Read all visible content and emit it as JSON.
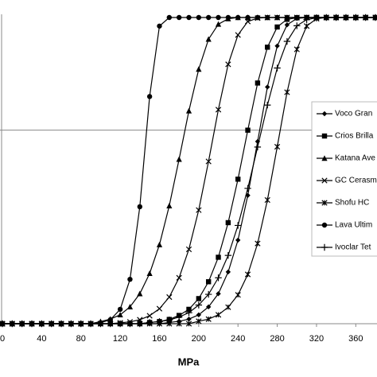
{
  "chart_data": {
    "type": "line",
    "x_label": "MPa",
    "x": [
      0,
      10,
      20,
      30,
      40,
      50,
      60,
      70,
      80,
      90,
      100,
      110,
      120,
      130,
      140,
      150,
      160,
      170,
      180,
      190,
      200,
      210,
      220,
      230,
      240,
      250,
      260,
      270,
      280,
      290,
      300,
      310,
      320,
      330,
      340,
      350,
      360,
      370,
      380
    ],
    "xlim": [
      0,
      380
    ],
    "xticks": [
      0,
      40,
      80,
      120,
      160,
      200,
      240,
      280,
      320,
      360
    ],
    "ylim": [
      0,
      1
    ],
    "reference_line": 0.632,
    "series": [
      {
        "name": "Voco Gran",
        "color": "#000000",
        "marker": "diamond",
        "values": [
          0,
          0,
          0,
          0,
          0,
          0,
          0,
          0,
          0,
          0,
          0,
          0,
          0,
          0,
          0,
          0,
          0,
          0.004,
          0.008,
          0.015,
          0.029,
          0.055,
          0.098,
          0.169,
          0.273,
          0.419,
          0.595,
          0.773,
          0.907,
          0.976,
          0.997,
          1,
          1,
          1,
          1,
          1,
          1,
          1,
          1
        ]
      },
      {
        "name": "Crios Brilla",
        "color": "#000000",
        "marker": "square",
        "values": [
          0,
          0,
          0,
          0,
          0,
          0,
          0,
          0,
          0,
          0,
          0,
          0,
          0,
          0,
          0,
          0.004,
          0.007,
          0.014,
          0.027,
          0.047,
          0.082,
          0.137,
          0.217,
          0.33,
          0.472,
          0.632,
          0.786,
          0.903,
          0.969,
          0.994,
          0.999,
          1,
          1,
          1,
          1,
          1,
          1,
          1,
          1
        ]
      },
      {
        "name": "Katana Ave",
        "color": "#000000",
        "marker": "triangle",
        "values": [
          0,
          0,
          0,
          0,
          0,
          0,
          0,
          0,
          0,
          0,
          0.007,
          0.015,
          0.029,
          0.055,
          0.098,
          0.164,
          0.258,
          0.385,
          0.537,
          0.695,
          0.831,
          0.929,
          0.978,
          0.996,
          1,
          1,
          1,
          1,
          1,
          1,
          1,
          1,
          1,
          1,
          1,
          1,
          1,
          1,
          1
        ]
      },
      {
        "name": "GC Cerasm",
        "color": "#000000",
        "marker": "x",
        "values": [
          0,
          0,
          0,
          0,
          0,
          0,
          0,
          0,
          0,
          0,
          0,
          0,
          0.003,
          0.006,
          0.013,
          0.026,
          0.049,
          0.087,
          0.15,
          0.243,
          0.371,
          0.53,
          0.699,
          0.847,
          0.943,
          0.987,
          0.998,
          1,
          1,
          1,
          1,
          1,
          1,
          1,
          1,
          1,
          1,
          1,
          1
        ]
      },
      {
        "name": "Shofu HC",
        "color": "#000000",
        "marker": "asterisk",
        "values": [
          0,
          0,
          0,
          0,
          0,
          0,
          0,
          0,
          0,
          0,
          0,
          0,
          0,
          0,
          0,
          0,
          0,
          0,
          0,
          0,
          0.008,
          0.015,
          0.029,
          0.054,
          0.094,
          0.161,
          0.262,
          0.404,
          0.578,
          0.756,
          0.896,
          0.972,
          0.996,
          1,
          1,
          1,
          1,
          1,
          1
        ]
      },
      {
        "name": "Lava Ultim",
        "color": "#000000",
        "marker": "circle",
        "values": [
          0,
          0,
          0,
          0,
          0,
          0,
          0,
          0,
          0,
          0,
          0.003,
          0.013,
          0.047,
          0.145,
          0.382,
          0.742,
          0.972,
          1,
          1,
          1,
          1,
          1,
          1,
          1,
          1,
          1,
          1,
          1,
          1,
          1,
          1,
          1,
          1,
          1,
          1,
          1,
          1,
          1,
          1
        ]
      },
      {
        "name": "Ivoclar Tet",
        "color": "#000000",
        "marker": "plus",
        "values": [
          0,
          0,
          0,
          0,
          0,
          0,
          0,
          0,
          0,
          0,
          0,
          0,
          0,
          0,
          0,
          0.004,
          0.007,
          0.012,
          0.022,
          0.036,
          0.061,
          0.096,
          0.15,
          0.223,
          0.321,
          0.442,
          0.577,
          0.714,
          0.835,
          0.922,
          0.973,
          0.993,
          0.999,
          1,
          1,
          1,
          1,
          1,
          1
        ]
      }
    ]
  }
}
